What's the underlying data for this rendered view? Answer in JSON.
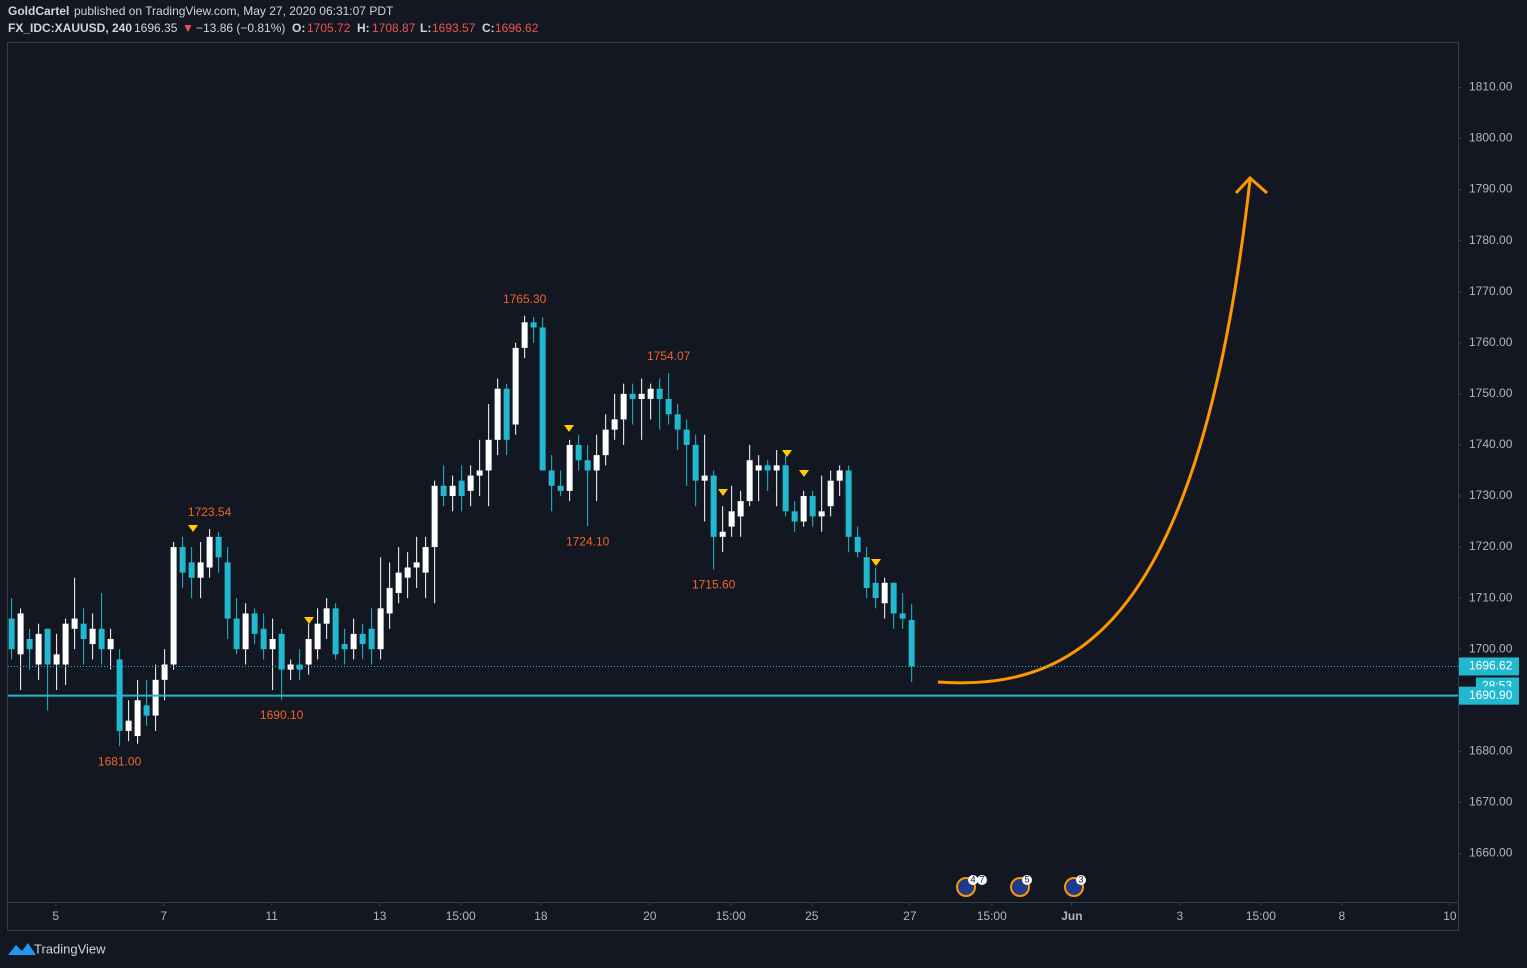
{
  "header": {
    "publisher": "GoldCartel",
    "published": "published on TradingView.com, May 27, 2020 06:31:07 PDT",
    "symbol": "FX_IDC:XAUUSD, 240",
    "last": "1696.35",
    "arrow": "▼",
    "change": "−13.86 (−0.81%)",
    "o_key": "O:",
    "o": "1705.72",
    "h_key": "H:",
    "h": "1708.87",
    "l_key": "L:",
    "l": "1693.57",
    "c_key": "C:",
    "c": "1696.62"
  },
  "footer": {
    "brand": "TradingView"
  },
  "chart_data": {
    "type": "candlestick",
    "up_color": "#ffffff",
    "down_color": "#22b8cf",
    "open": [
      1706,
      1699,
      1702,
      1697,
      1704,
      1697,
      1697,
      1704,
      1705,
      1701,
      1704,
      1700,
      1698,
      1684,
      1683,
      1689,
      1687,
      1694,
      1697,
      1720,
      1717,
      1714,
      1716,
      1722,
      1717,
      1706,
      1700,
      1707,
      1704,
      1700,
      1703,
      1696,
      1697,
      1697,
      1700,
      1705,
      1708,
      1701,
      1700,
      1703,
      1704,
      1700,
      1707,
      1711,
      1714,
      1716,
      1715,
      1720,
      1732,
      1730,
      1733,
      1731,
      1734,
      1735,
      1741,
      1751,
      1744,
      1759,
      1764,
      1763,
      1735,
      1732,
      1731,
      1740,
      1737,
      1735,
      1738,
      1743,
      1745,
      1750,
      1749,
      1749,
      1751,
      1749,
      1746,
      1743,
      1740,
      1733,
      1734,
      1722,
      1724,
      1726,
      1729,
      1735,
      1736,
      1735,
      1736,
      1727,
      1725,
      1730,
      1726,
      1728,
      1733,
      1735,
      1722,
      1718,
      1713,
      1709,
      1713,
      1707,
      1705.72
    ],
    "high": [
      1710,
      1708,
      1704,
      1705,
      1704,
      1703,
      1706,
      1714,
      1708,
      1707,
      1711,
      1704,
      1700,
      1690,
      1694,
      1694,
      1697,
      1700,
      1721,
      1722,
      1720,
      1721,
      1723.54,
      1723,
      1720,
      1710,
      1709,
      1708,
      1707,
      1706,
      1704,
      1698,
      1700,
      1705,
      1708,
      1710,
      1709,
      1704,
      1706,
      1705,
      1708,
      1718,
      1717,
      1720,
      1719,
      1722,
      1722,
      1733,
      1736,
      1734,
      1736,
      1736,
      1741,
      1748,
      1753,
      1752,
      1760,
      1765.3,
      1765,
      1765,
      1738,
      1735,
      1741,
      1742,
      1740,
      1742,
      1746,
      1750,
      1752,
      1752,
      1753,
      1752,
      1753,
      1754.07,
      1748,
      1745,
      1742,
      1742,
      1735,
      1728,
      1732,
      1731,
      1740,
      1738,
      1737,
      1739,
      1738,
      1729,
      1731,
      1731,
      1734,
      1735,
      1736,
      1736,
      1724,
      1720,
      1716,
      1714,
      1713,
      1711,
      1708.87
    ],
    "low": [
      1698,
      1692,
      1696,
      1694,
      1688,
      1692,
      1693,
      1700,
      1697,
      1698,
      1697,
      1696,
      1681,
      1682,
      1681.5,
      1685,
      1684,
      1690,
      1696,
      1712,
      1710,
      1710,
      1714,
      1715,
      1702,
      1699,
      1697,
      1701,
      1698,
      1692,
      1690.1,
      1694,
      1694,
      1695,
      1698,
      1702,
      1698,
      1697,
      1698,
      1698,
      1697,
      1698,
      1704,
      1709,
      1710,
      1712,
      1710,
      1709,
      1728,
      1727,
      1727,
      1728,
      1730,
      1728,
      1738,
      1738,
      1742,
      1757,
      1760,
      1735,
      1727,
      1730,
      1729,
      1735,
      1724.1,
      1729,
      1736,
      1741,
      1740,
      1744,
      1741,
      1745,
      1743,
      1744,
      1739,
      1732,
      1728,
      1725,
      1715.6,
      1719,
      1722,
      1722,
      1728,
      1729,
      1731,
      1728,
      1726,
      1723,
      1724,
      1724,
      1723,
      1726,
      1730,
      1719,
      1718,
      1710,
      1708,
      1706,
      1704,
      1704,
      1693.57
    ],
    "close": [
      1700,
      1707,
      1700,
      1703,
      1697,
      1699,
      1705,
      1706,
      1702,
      1704,
      1700,
      1702,
      1684,
      1686,
      1690,
      1687,
      1694,
      1697,
      1720,
      1715,
      1714,
      1717,
      1722,
      1718,
      1706,
      1700,
      1707,
      1703,
      1700,
      1702,
      1696,
      1697,
      1696,
      1702,
      1705,
      1708,
      1699,
      1700,
      1703,
      1701,
      1700,
      1708,
      1712,
      1715,
      1716,
      1717,
      1720,
      1732,
      1730,
      1732,
      1730,
      1734,
      1735,
      1741,
      1751,
      1741,
      1759,
      1764,
      1763,
      1735,
      1732,
      1731,
      1740,
      1737,
      1735,
      1738,
      1743,
      1745,
      1750,
      1749,
      1750,
      1751,
      1749,
      1746,
      1743,
      1740,
      1733,
      1734,
      1722,
      1723,
      1727,
      1729,
      1737,
      1736,
      1735,
      1736,
      1727,
      1725,
      1730,
      1726,
      1727,
      1733,
      1735,
      1722,
      1719,
      1712,
      1710,
      1713,
      1707,
      1706,
      1696.62
    ],
    "ylim": [
      1650.5,
      1818.7
    ],
    "yticks": [
      {
        "value": 1810,
        "label": "1810.00"
      },
      {
        "value": 1800,
        "label": "1800.00"
      },
      {
        "value": 1790,
        "label": "1790.00"
      },
      {
        "value": 1780,
        "label": "1780.00"
      },
      {
        "value": 1770,
        "label": "1770.00"
      },
      {
        "value": 1760,
        "label": "1760.00"
      },
      {
        "value": 1750,
        "label": "1750.00"
      },
      {
        "value": 1740,
        "label": "1740.00"
      },
      {
        "value": 1730,
        "label": "1730.00"
      },
      {
        "value": 1720,
        "label": "1720.00"
      },
      {
        "value": 1710,
        "label": "1710.00"
      },
      {
        "value": 1700,
        "label": "1700.00"
      },
      {
        "value": 1680,
        "label": "1680.00"
      },
      {
        "value": 1670,
        "label": "1670.00"
      },
      {
        "value": 1660,
        "label": "1660.00"
      }
    ],
    "xlim": [
      -0.4,
      160.7
    ],
    "xticks": [
      {
        "value": 4.9,
        "label": "5"
      },
      {
        "value": 16.9,
        "label": "7"
      },
      {
        "value": 28.9,
        "label": "11"
      },
      {
        "value": 40.9,
        "label": "13"
      },
      {
        "value": 49.9,
        "label": "15:00"
      },
      {
        "value": 58.8,
        "label": "18"
      },
      {
        "value": 70.9,
        "label": "20"
      },
      {
        "value": 79.9,
        "label": "15:00"
      },
      {
        "value": 88.9,
        "label": "25"
      },
      {
        "value": 99.8,
        "label": "27"
      },
      {
        "value": 108.9,
        "label": "15:00"
      },
      {
        "value": 117.8,
        "label": "Jun"
      },
      {
        "value": 129.8,
        "label": "3"
      },
      {
        "value": 138.8,
        "label": "15:00"
      },
      {
        "value": 147.8,
        "label": "8"
      },
      {
        "value": 159.8,
        "label": "10"
      }
    ],
    "pivot_labels": [
      {
        "candle": 57,
        "value": 1765.3,
        "label": "1765.30",
        "position": "above"
      },
      {
        "candle": 73,
        "value": 1754.07,
        "label": "1754.07",
        "position": "above"
      },
      {
        "candle": 22,
        "value": 1723.54,
        "label": "1723.54",
        "position": "above"
      },
      {
        "candle": 64,
        "value": 1724.1,
        "label": "1724.10",
        "position": "below"
      },
      {
        "candle": 78,
        "value": 1715.6,
        "label": "1715.60",
        "position": "below"
      },
      {
        "candle": 30,
        "value": 1690.1,
        "label": "1690.10",
        "position": "below"
      },
      {
        "candle": 12,
        "value": 1681,
        "label": "1681.00",
        "position": "below"
      }
    ],
    "price_lines": [
      {
        "value": 1696.62,
        "label": "1696.62",
        "style": "dotted",
        "color": "#22b8cf"
      },
      {
        "value": 1690.9,
        "label": "1690.90",
        "style": "solid",
        "color": "#22b8cf"
      }
    ],
    "countdown": "28:53",
    "events": [
      {
        "badges": [
          "4",
          "7"
        ]
      },
      {
        "badges": [
          "5"
        ]
      },
      {
        "badges": [
          "3"
        ]
      }
    ]
  }
}
